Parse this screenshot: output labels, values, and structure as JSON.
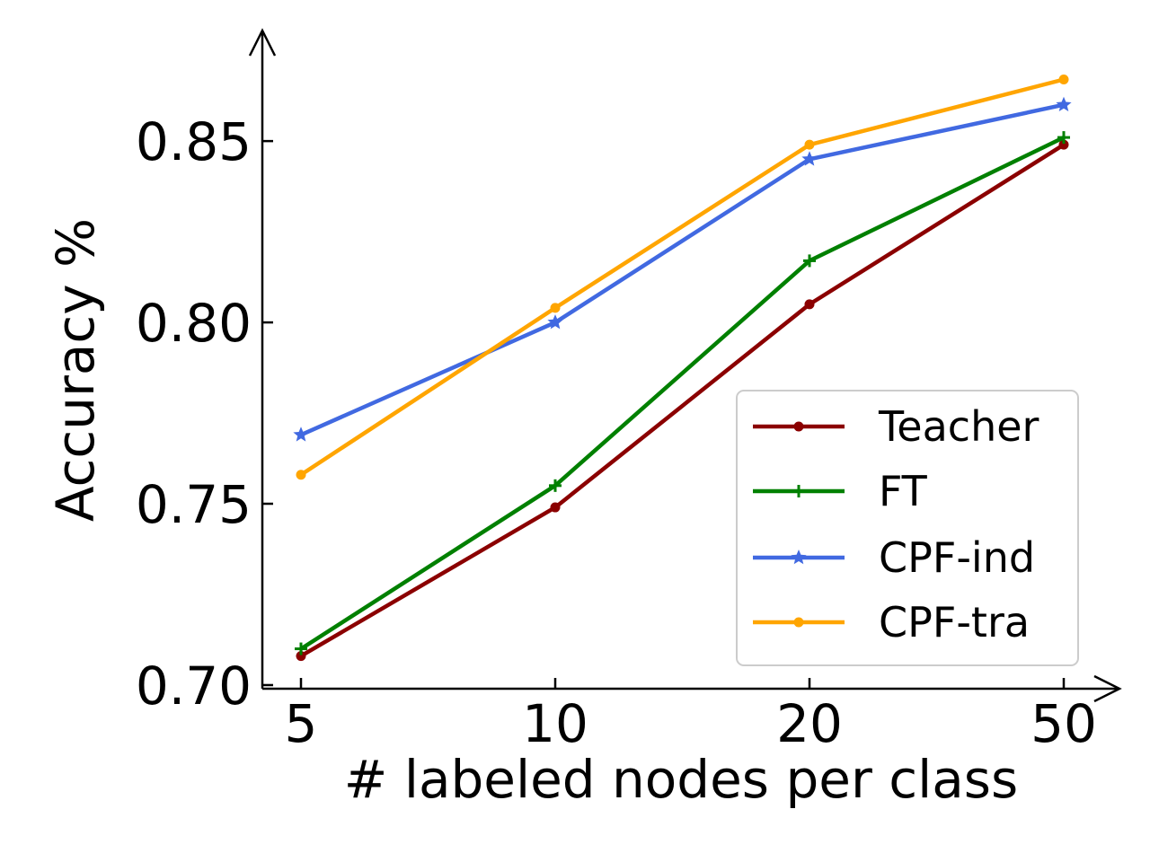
{
  "chart_data": {
    "type": "line",
    "title": "",
    "xlabel": "# labeled nodes per class",
    "ylabel": "Accuracy %",
    "categories": [
      "5",
      "10",
      "20",
      "50"
    ],
    "ylim": [
      0.699,
      0.879
    ],
    "yticks": [
      "0.70",
      "0.75",
      "0.80",
      "0.85"
    ],
    "ytick_values": [
      0.7,
      0.75,
      0.8,
      0.85
    ],
    "grid": false,
    "legend_position": "lower-right",
    "series": [
      {
        "name": "Teacher",
        "color": "#8b0000",
        "marker": "dot",
        "values": [
          0.708,
          0.749,
          0.805,
          0.849
        ]
      },
      {
        "name": "FT",
        "color": "#008000",
        "marker": "plus",
        "values": [
          0.71,
          0.755,
          0.817,
          0.851
        ]
      },
      {
        "name": "CPF-ind",
        "color": "#4169e1",
        "marker": "star",
        "values": [
          0.769,
          0.8,
          0.845,
          0.86
        ]
      },
      {
        "name": "CPF-tra",
        "color": "#ffa500",
        "marker": "dot",
        "values": [
          0.758,
          0.804,
          0.849,
          0.867
        ]
      }
    ]
  }
}
